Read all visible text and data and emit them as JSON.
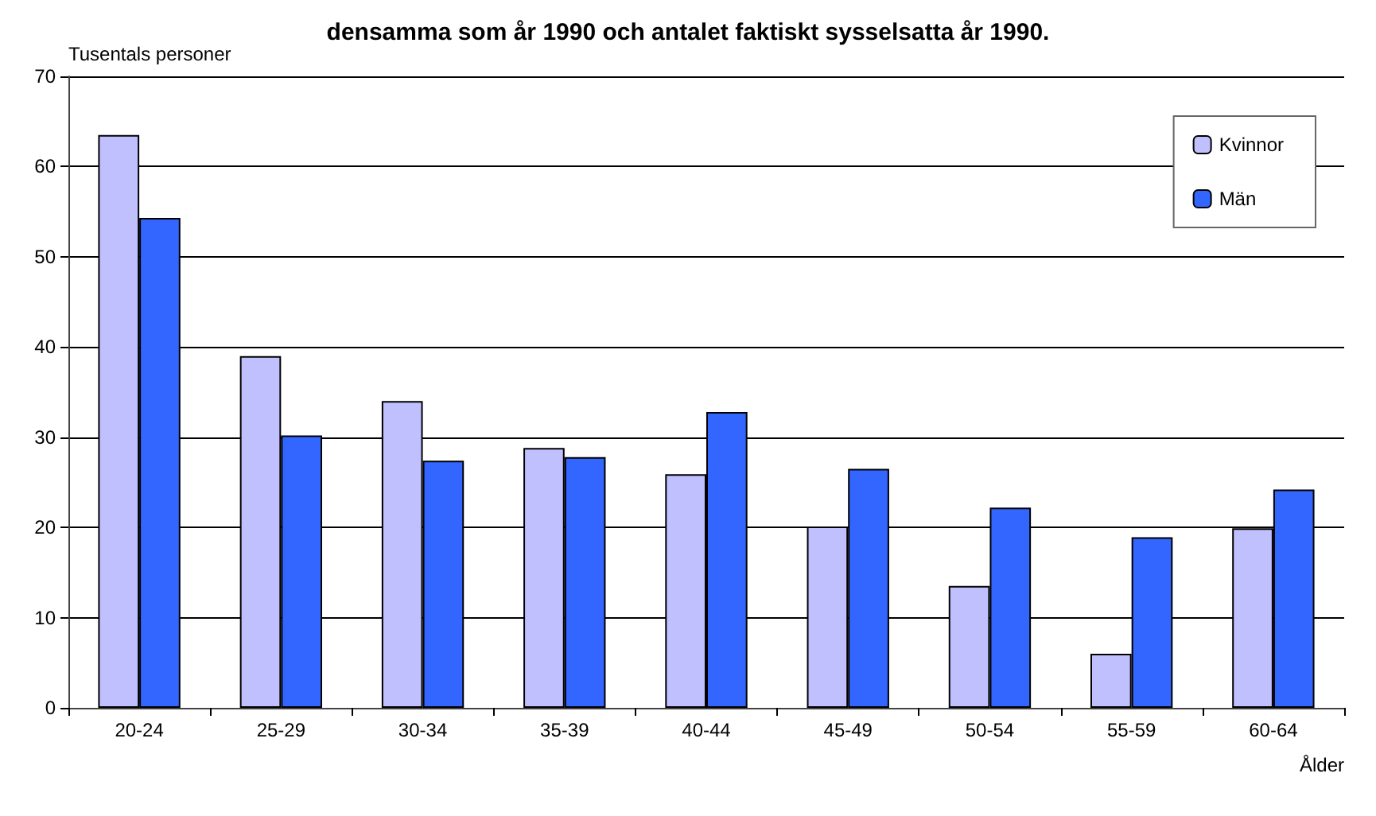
{
  "chart_data": {
    "type": "bar",
    "title": "densamma som år 1990 och antalet faktiskt sysselsatta år 1990.",
    "ylabel": "Tusentals personer",
    "xlabel": "Ålder",
    "categories": [
      "20-24",
      "25-29",
      "30-34",
      "35-39",
      "40-44",
      "45-49",
      "50-54",
      "55-59",
      "60-64"
    ],
    "series": [
      {
        "name": "Kvinnor",
        "color": "#c0c0ff",
        "values": [
          63.5,
          39,
          34,
          28.8,
          25.9,
          20.1,
          13.5,
          6,
          19.9
        ]
      },
      {
        "name": "Män",
        "color": "#3366ff",
        "values": [
          54.3,
          30.2,
          27.4,
          27.8,
          32.8,
          26.5,
          22.2,
          18.9,
          24.2
        ]
      }
    ],
    "ylim": [
      0,
      70
    ],
    "yticks": [
      0,
      10,
      20,
      30,
      40,
      50,
      60,
      70
    ],
    "grid": "y",
    "legend": "top right"
  }
}
